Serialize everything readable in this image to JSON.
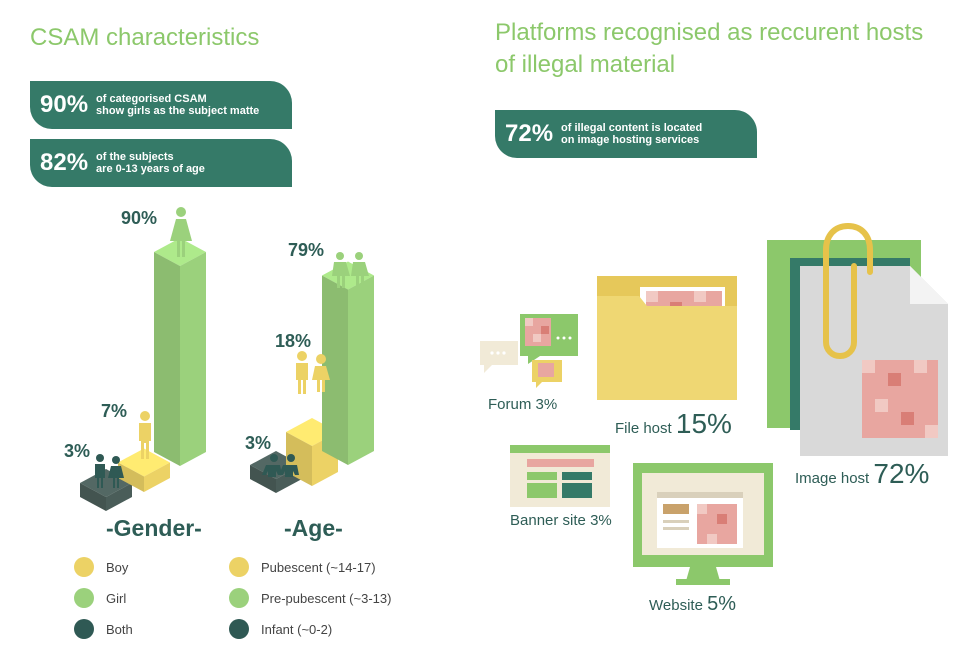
{
  "left": {
    "title": "CSAM characteristics",
    "stat1": {
      "value": "90%",
      "text1": "of categorised CSAM",
      "text2": "show girls as the subject matte"
    },
    "stat2": {
      "value": "82%",
      "text1": "of the subjects",
      "text2": "are 0-13 years of age"
    }
  },
  "right": {
    "title_line1": "Platforms recognised as reccurent hosts",
    "title_line2": "of illegal material",
    "stat": {
      "value": "72%",
      "text1": "of illegal content is located",
      "text2": "on image hosting services"
    }
  },
  "colors": {
    "yellow": "#ecd265",
    "green": "#9bd17c",
    "dark": "#4a5d59",
    "teal": "#357a68"
  },
  "chart_data": [
    {
      "type": "bar",
      "title": "-Gender-",
      "categories": [
        "Both",
        "Boy",
        "Girl"
      ],
      "values": [
        3,
        7,
        90
      ],
      "labels": [
        "3%",
        "7%",
        "90%"
      ],
      "colors": [
        "#4a5d59",
        "#ecd265",
        "#9bd17c"
      ]
    },
    {
      "type": "bar",
      "title": "-Age-",
      "categories": [
        "Infant (~0-2)",
        "Pubescent (~14-17)",
        "Pre-pubescent (~3-13)"
      ],
      "values": [
        3,
        18,
        79
      ],
      "labels": [
        "3%",
        "18%",
        "79%"
      ],
      "colors": [
        "#4a5d59",
        "#ecd265",
        "#9bd17c"
      ]
    },
    {
      "type": "table",
      "title": "Platforms",
      "categories": [
        "Forum",
        "File host",
        "Banner site",
        "Website",
        "Image host"
      ],
      "values": [
        3,
        15,
        3,
        5,
        72
      ],
      "labels": [
        "3%",
        "15%",
        "3%",
        "5%",
        "72%"
      ]
    }
  ],
  "legend_gender": [
    {
      "label": "Boy",
      "color": "#ecd265"
    },
    {
      "label": "Girl",
      "color": "#9bd17c"
    },
    {
      "label": "Both",
      "color": "#2f5954"
    }
  ],
  "legend_age": [
    {
      "label": "Pubescent (~14-17)",
      "color": "#ecd265"
    },
    {
      "label": "Pre-pubescent (~3-13)",
      "color": "#9bd17c"
    },
    {
      "label": "Infant (~0-2)",
      "color": "#2f5954"
    }
  ]
}
